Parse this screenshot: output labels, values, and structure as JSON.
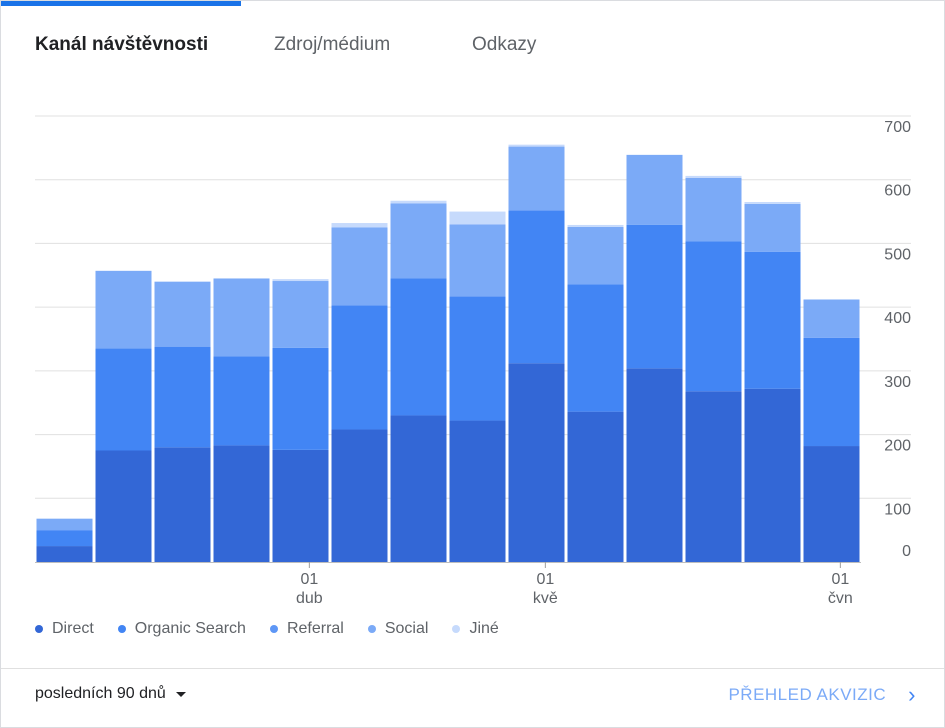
{
  "tabs": [
    {
      "label": "Kanál návštěvnosti",
      "active": true
    },
    {
      "label": "Zdroj/médium",
      "active": false
    },
    {
      "label": "Odkazy",
      "active": false
    }
  ],
  "legend": [
    {
      "label": "Direct",
      "color": "#3367d6"
    },
    {
      "label": "Organic Search",
      "color": "#4285f4"
    },
    {
      "label": "Referral",
      "color": "#5e97f6"
    },
    {
      "label": "Social",
      "color": "#7baaf7"
    },
    {
      "label": "Jiné",
      "color": "#c6dafc"
    }
  ],
  "footer": {
    "range_label": "posledních 90 dnů",
    "report_link": "PŘEHLED AKVIZIC"
  },
  "chart_data": {
    "type": "bar",
    "stacked": true,
    "ylim": [
      0,
      700
    ],
    "yticks": [
      0,
      100,
      200,
      300,
      400,
      500,
      600,
      700
    ],
    "y_axis_position": "right",
    "grid": true,
    "legend_position": "bottom-left",
    "bar_count": 14,
    "x_ticks": [
      {
        "after_bar": 4,
        "day": "01",
        "month": "dub"
      },
      {
        "after_bar": 8,
        "day": "01",
        "month": "kvě"
      },
      {
        "after_bar": 13,
        "day": "01",
        "month": "čvn"
      }
    ],
    "series": [
      {
        "name": "Direct",
        "color": "#3367d6",
        "values": [
          25,
          175,
          180,
          183,
          176,
          208,
          230,
          222,
          312,
          236,
          304,
          268,
          272,
          182
        ]
      },
      {
        "name": "Organic Search",
        "color": "#4285f4",
        "values": [
          25,
          160,
          158,
          140,
          160,
          195,
          215,
          195,
          240,
          200,
          225,
          235,
          215,
          170
        ]
      },
      {
        "name": "Referral",
        "color": "#5e97f6",
        "values": [
          0,
          0,
          0,
          0,
          0,
          0,
          0,
          0,
          0,
          0,
          0,
          0,
          0,
          0
        ]
      },
      {
        "name": "Social",
        "color": "#7baaf7",
        "values": [
          18,
          122,
          102,
          122,
          105,
          122,
          118,
          113,
          100,
          90,
          110,
          100,
          75,
          60
        ]
      },
      {
        "name": "Jiné",
        "color": "#c6dafc",
        "values": [
          0,
          0,
          0,
          0,
          3,
          7,
          4,
          20,
          3,
          3,
          0,
          3,
          3,
          0
        ]
      }
    ]
  }
}
